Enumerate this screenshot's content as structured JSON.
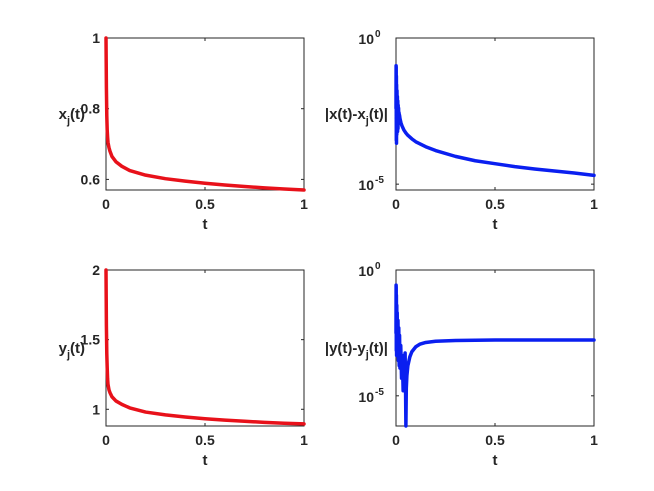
{
  "chart_data": [
    {
      "type": "line",
      "scale": "linear",
      "xlabel": "t",
      "ylabel": {
        "main": "x",
        "sub": "j",
        "tail": "(t)"
      },
      "xlim": [
        0,
        1
      ],
      "ylim": [
        0.57,
        1.0
      ],
      "xticks": [
        "0",
        "0.5",
        "1"
      ],
      "yticks": [
        {
          "v": 0.6,
          "label": "0.6"
        },
        {
          "v": 0.8,
          "label": "0.8"
        },
        {
          "v": 1.0,
          "label": "1"
        }
      ],
      "color": "#e8111a",
      "series": [
        {
          "x": [
            0,
            0.001,
            0.002,
            0.004,
            0.006,
            0.008,
            0.01,
            0.015,
            0.02,
            0.03,
            0.05,
            0.08,
            0.12,
            0.2,
            0.3,
            0.4,
            0.5,
            0.6,
            0.7,
            0.8,
            0.9,
            1.0
          ],
          "y": [
            1.0,
            0.93,
            0.86,
            0.78,
            0.74,
            0.72,
            0.705,
            0.69,
            0.68,
            0.665,
            0.65,
            0.637,
            0.625,
            0.612,
            0.602,
            0.595,
            0.589,
            0.584,
            0.58,
            0.576,
            0.573,
            0.57
          ]
        }
      ]
    },
    {
      "type": "line",
      "scale": "log",
      "xlabel": "t",
      "ylabel": {
        "main": "|x(t)-x",
        "sub": "j",
        "tail": "(t)|"
      },
      "xlim": [
        0,
        1
      ],
      "ylim": [
        -5.2,
        0
      ],
      "xticks": [
        "0",
        "0.5",
        "1"
      ],
      "yticks": [
        {
          "v": 0,
          "label": "10",
          "exp": "0"
        },
        {
          "v": -5,
          "label": "10",
          "exp": "-5"
        }
      ],
      "color": "#0a1ff0",
      "series": [
        {
          "x": [
            0,
            0.0005,
            0.001,
            0.0015,
            0.002,
            0.0025,
            0.003,
            0.004,
            0.005,
            0.006,
            0.007,
            0.008,
            0.009,
            0.01,
            0.011,
            0.012,
            0.013,
            0.014,
            0.015,
            0.016,
            0.018,
            0.02,
            0.025,
            0.03,
            0.04,
            0.05,
            0.06,
            0.08,
            0.1,
            0.15,
            0.2,
            0.3,
            0.4,
            0.5,
            0.6,
            0.7,
            0.8,
            0.9,
            1.0
          ],
          "y": [
            -2.4,
            -0.95,
            -1.0,
            -3.5,
            -1.3,
            -3.6,
            -1.6,
            -3.3,
            -1.8,
            -3.2,
            -2.0,
            -3.2,
            -2.15,
            -3.1,
            -2.3,
            -2.9,
            -2.4,
            -2.75,
            -2.55,
            -2.6,
            -2.65,
            -2.75,
            -2.9,
            -3.0,
            -3.15,
            -3.25,
            -3.33,
            -3.45,
            -3.55,
            -3.72,
            -3.85,
            -4.05,
            -4.2,
            -4.3,
            -4.4,
            -4.48,
            -4.55,
            -4.62,
            -4.7
          ]
        }
      ]
    },
    {
      "type": "line",
      "scale": "linear",
      "xlabel": "t",
      "ylabel": {
        "main": "y",
        "sub": "j",
        "tail": "(t)"
      },
      "xlim": [
        0,
        1
      ],
      "ylim": [
        0.88,
        2.0
      ],
      "xticks": [
        "0",
        "0.5",
        "1"
      ],
      "yticks": [
        {
          "v": 1.0,
          "label": "1"
        },
        {
          "v": 1.5,
          "label": "1.5"
        },
        {
          "v": 2.0,
          "label": "2"
        }
      ],
      "color": "#e8111a",
      "series": [
        {
          "x": [
            0,
            0.001,
            0.002,
            0.004,
            0.006,
            0.008,
            0.01,
            0.015,
            0.02,
            0.03,
            0.05,
            0.08,
            0.12,
            0.2,
            0.3,
            0.4,
            0.5,
            0.6,
            0.7,
            0.8,
            0.9,
            1.0
          ],
          "y": [
            2.0,
            1.8,
            1.6,
            1.4,
            1.3,
            1.22,
            1.18,
            1.14,
            1.12,
            1.09,
            1.06,
            1.035,
            1.01,
            0.98,
            0.96,
            0.945,
            0.932,
            0.922,
            0.914,
            0.906,
            0.9,
            0.895
          ]
        }
      ]
    },
    {
      "type": "line",
      "scale": "log",
      "xlabel": "t",
      "ylabel": {
        "main": "|y(t)-y",
        "sub": "j",
        "tail": "(t)|"
      },
      "xlim": [
        0,
        1
      ],
      "ylim": [
        -6.2,
        0
      ],
      "xticks": [
        "0",
        "0.5",
        "1"
      ],
      "yticks": [
        {
          "v": 0,
          "label": "10",
          "exp": "0"
        },
        {
          "v": -5,
          "label": "10",
          "exp": "-5"
        }
      ],
      "color": "#0a1ff0",
      "series": [
        {
          "x": [
            0,
            0.0005,
            0.001,
            0.0015,
            0.002,
            0.003,
            0.004,
            0.005,
            0.006,
            0.008,
            0.01,
            0.012,
            0.014,
            0.016,
            0.018,
            0.02,
            0.024,
            0.028,
            0.032,
            0.036,
            0.04,
            0.043,
            0.046,
            0.048,
            0.05,
            0.052,
            0.055,
            0.06,
            0.07,
            0.08,
            0.1,
            0.12,
            0.15,
            0.2,
            0.3,
            0.4,
            0.5,
            0.6,
            0.7,
            0.8,
            0.9,
            1.0
          ],
          "y": [
            -2.5,
            -0.6,
            -0.7,
            -3.2,
            -1.0,
            -3.4,
            -1.4,
            -3.3,
            -1.7,
            -3.4,
            -2.0,
            -3.6,
            -2.3,
            -3.8,
            -2.6,
            -3.9,
            -3.0,
            -4.3,
            -3.4,
            -4.8,
            -3.9,
            -3.5,
            -3.3,
            -4.5,
            -6.2,
            -4.7,
            -4.2,
            -3.8,
            -3.45,
            -3.25,
            -3.05,
            -2.95,
            -2.88,
            -2.83,
            -2.8,
            -2.79,
            -2.78,
            -2.78,
            -2.78,
            -2.78,
            -2.78,
            -2.78
          ]
        }
      ]
    }
  ]
}
